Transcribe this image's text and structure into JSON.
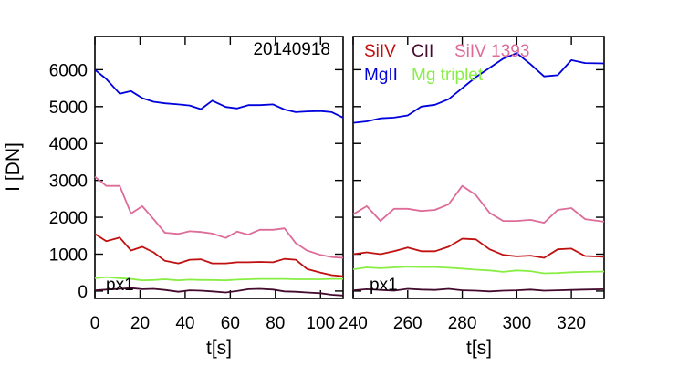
{
  "chart_data": [
    {
      "type": "line",
      "panel": "left",
      "title": "20140918",
      "annotation": "px1",
      "xlabel": "t[s]",
      "ylabel": "I [DN]",
      "xlim": [
        0,
        110
      ],
      "ylim": [
        -200,
        6900
      ],
      "xticks": [
        0,
        20,
        40,
        60,
        80,
        100
      ],
      "yticks": [
        0,
        1000,
        2000,
        3000,
        4000,
        5000,
        6000
      ],
      "grid": false,
      "x": [
        0,
        5,
        11,
        16,
        21,
        26,
        31,
        37,
        42,
        47,
        52,
        58,
        63,
        68,
        73,
        79,
        84,
        89,
        94,
        100,
        105,
        110
      ],
      "series": [
        {
          "name": "MgII",
          "color": "#0000dd",
          "values": [
            6000,
            5750,
            5350,
            5420,
            5230,
            5130,
            5090,
            5060,
            5030,
            4930,
            5160,
            4990,
            4950,
            5040,
            5040,
            5060,
            4920,
            4850,
            4870,
            4880,
            4850,
            4700
          ]
        },
        {
          "name": "SiIV 1393",
          "color": "#dd6c99",
          "values": [
            3100,
            2850,
            2850,
            2100,
            2300,
            1950,
            1580,
            1550,
            1620,
            1600,
            1560,
            1440,
            1610,
            1530,
            1660,
            1660,
            1700,
            1300,
            1100,
            980,
            920,
            900
          ]
        },
        {
          "name": "SiIV",
          "color": "#c01010",
          "values": [
            1550,
            1350,
            1450,
            1100,
            1200,
            1050,
            820,
            750,
            850,
            860,
            750,
            750,
            780,
            780,
            790,
            780,
            870,
            850,
            600,
            500,
            430,
            400
          ]
        },
        {
          "name": "Mg triplet",
          "color": "#88ee44",
          "values": [
            350,
            380,
            350,
            330,
            290,
            300,
            320,
            290,
            310,
            300,
            300,
            290,
            310,
            320,
            330,
            330,
            330,
            320,
            320,
            320,
            330,
            330
          ]
        },
        {
          "name": "CII",
          "color": "#440b2e",
          "values": [
            20,
            40,
            60,
            80,
            50,
            60,
            30,
            -20,
            20,
            10,
            -10,
            -40,
            0,
            50,
            60,
            40,
            -10,
            -20,
            -40,
            -60,
            -100,
            -120
          ]
        }
      ]
    },
    {
      "type": "line",
      "panel": "right",
      "annotation": "px1",
      "xlabel": "t[s]",
      "xlim": [
        240,
        332
      ],
      "ylim": [
        -200,
        6900
      ],
      "xticks": [
        240,
        260,
        280,
        300,
        320
      ],
      "grid": false,
      "legend": [
        "SiIV",
        "CII",
        "SiIV 1393",
        "MgII",
        "Mg triplet"
      ],
      "legend_position": "top-left",
      "x": [
        240,
        245,
        250,
        255,
        260,
        265,
        270,
        275,
        280,
        285,
        290,
        295,
        300,
        305,
        310,
        315,
        320,
        325,
        332
      ],
      "series": [
        {
          "name": "MgII",
          "color": "#0000dd",
          "values": [
            4560,
            4600,
            4680,
            4700,
            4760,
            5000,
            5050,
            5200,
            5500,
            5800,
            6050,
            6300,
            6450,
            6150,
            5820,
            5850,
            6260,
            6180,
            6170
          ]
        },
        {
          "name": "SiIV 1393",
          "color": "#dd6c99",
          "values": [
            2080,
            2300,
            1900,
            2230,
            2230,
            2170,
            2200,
            2350,
            2850,
            2600,
            2120,
            1900,
            1900,
            1930,
            1850,
            2200,
            2250,
            1950,
            1880
          ]
        },
        {
          "name": "SiIV",
          "color": "#c01010",
          "values": [
            1000,
            1050,
            1000,
            1080,
            1180,
            1080,
            1080,
            1200,
            1420,
            1400,
            1130,
            980,
            940,
            960,
            900,
            1130,
            1150,
            950,
            930
          ]
        },
        {
          "name": "Mg triplet",
          "color": "#88ee44",
          "values": [
            590,
            640,
            620,
            640,
            660,
            650,
            650,
            630,
            610,
            580,
            560,
            520,
            560,
            540,
            480,
            490,
            510,
            520,
            530
          ]
        },
        {
          "name": "CII",
          "color": "#440b2e",
          "values": [
            20,
            50,
            30,
            10,
            60,
            40,
            30,
            60,
            20,
            10,
            -10,
            10,
            20,
            40,
            10,
            20,
            30,
            40,
            50
          ]
        }
      ]
    }
  ]
}
